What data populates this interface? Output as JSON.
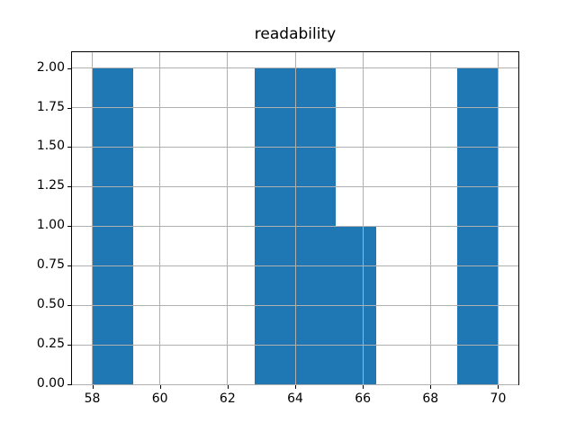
{
  "figure": {
    "background": "#ffffff"
  },
  "chart_data": {
    "type": "bar",
    "subtype": "histogram",
    "title": "readability",
    "bin_edges": [
      58.0,
      59.2,
      60.4,
      61.6,
      62.8,
      64.0,
      65.2,
      66.4,
      67.6,
      68.8,
      70.0
    ],
    "counts": [
      2,
      0,
      0,
      0,
      2,
      2,
      1,
      0,
      0,
      2
    ],
    "xlabel": "",
    "ylabel": "",
    "xlim": [
      57.4,
      70.6
    ],
    "ylim": [
      0,
      2.1
    ],
    "x_ticks": [
      58,
      60,
      62,
      64,
      66,
      68,
      70
    ],
    "x_tick_labels": [
      "58",
      "60",
      "62",
      "64",
      "66",
      "68",
      "70"
    ],
    "y_ticks": [
      0,
      0.25,
      0.5,
      0.75,
      1.0,
      1.25,
      1.5,
      1.75,
      2.0
    ],
    "y_tick_labels": [
      "0.00",
      "0.25",
      "0.50",
      "0.75",
      "1.00",
      "1.25",
      "1.50",
      "1.75",
      "2.00"
    ],
    "grid": true,
    "legend": "none",
    "bar_color": "#1f77b4",
    "grid_color": "#b0b0b0",
    "axis_color": "#000000",
    "text_color": "#000000"
  }
}
